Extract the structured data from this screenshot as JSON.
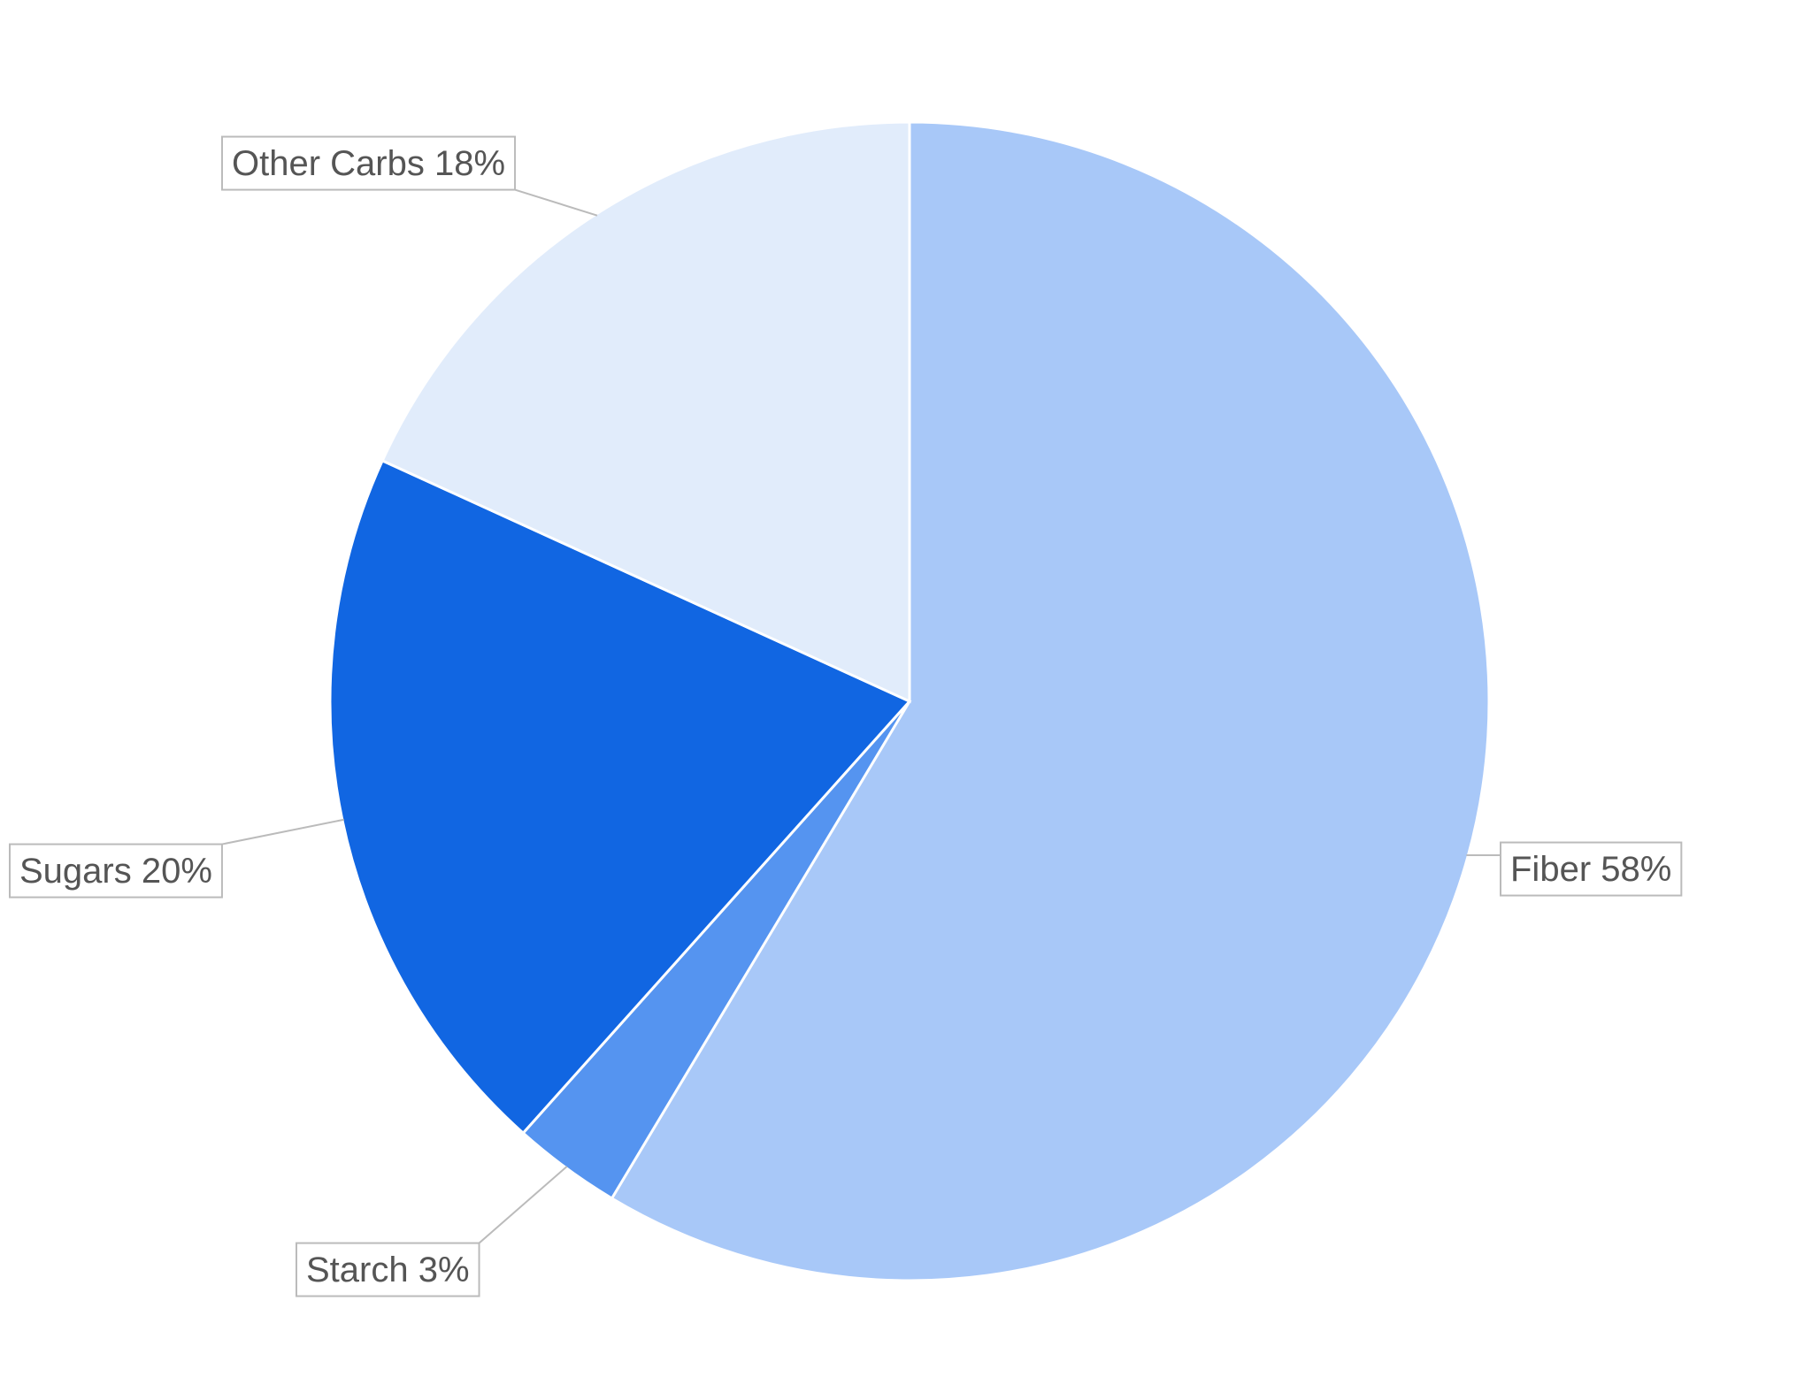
{
  "chart_data": {
    "type": "pie",
    "categories": [
      "Fiber",
      "Starch",
      "Sugars",
      "Other Carbs"
    ],
    "values": [
      58,
      3,
      20,
      18
    ],
    "value_labels": [
      "58%",
      "3%",
      "20%",
      "18%"
    ],
    "colors": [
      "#a8c8f8",
      "#5594f0",
      "#1166e2",
      "#e1ecfb"
    ]
  }
}
